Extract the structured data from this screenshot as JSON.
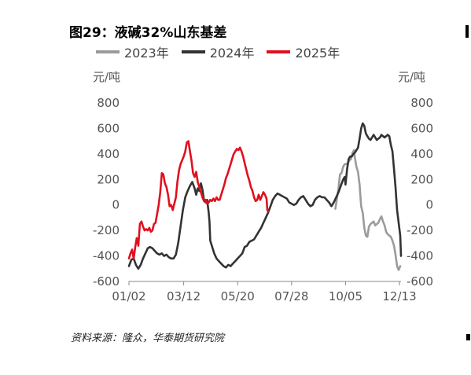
{
  "title": "图29：液碱32%山东基差",
  "source": "资料来源：隆众，华泰期货研究院",
  "colors": {
    "y2023": "#9b9b9b",
    "y2024": "#333333",
    "y2025": "#e0101e",
    "axis": "#555555"
  },
  "chart_data": {
    "type": "line",
    "title": "图29：液碱32%山东基差",
    "left_unit": "元/吨",
    "right_unit": "元/吨",
    "ylim": [
      -600,
      800
    ],
    "yticks": [
      "800",
      "600",
      "400",
      "200",
      "0",
      "-200",
      "-400",
      "-600"
    ],
    "xlim": [
      0,
      348
    ],
    "xticks": [
      {
        "day": 0,
        "label": "01/02"
      },
      {
        "day": 70,
        "label": "03/12"
      },
      {
        "day": 139,
        "label": "05/20"
      },
      {
        "day": 208,
        "label": "07/28"
      },
      {
        "day": 277,
        "label": "10/05"
      },
      {
        "day": 346,
        "label": "12/13"
      }
    ],
    "grid": false,
    "legend_position": "top",
    "series": [
      {
        "name": "2023年",
        "color": "#9b9b9b",
        "points": [
          [
            264,
            -30
          ],
          [
            266,
            50
          ],
          [
            268,
            130
          ],
          [
            270,
            240
          ],
          [
            272,
            250
          ],
          [
            274,
            300
          ],
          [
            276,
            320
          ],
          [
            278,
            320
          ],
          [
            280,
            330
          ],
          [
            282,
            350
          ],
          [
            284,
            360
          ],
          [
            286,
            410
          ],
          [
            288,
            430
          ],
          [
            289,
            370
          ],
          [
            291,
            300
          ],
          [
            293,
            260
          ],
          [
            295,
            160
          ],
          [
            297,
            -10
          ],
          [
            299,
            -60
          ],
          [
            301,
            -180
          ],
          [
            303,
            -240
          ],
          [
            305,
            -250
          ],
          [
            307,
            -170
          ],
          [
            309,
            -150
          ],
          [
            311,
            -140
          ],
          [
            313,
            -130
          ],
          [
            315,
            -160
          ],
          [
            317,
            -150
          ],
          [
            319,
            -140
          ],
          [
            321,
            -110
          ],
          [
            323,
            -90
          ],
          [
            325,
            -130
          ],
          [
            327,
            -160
          ],
          [
            329,
            -210
          ],
          [
            331,
            -230
          ],
          [
            333,
            -240
          ],
          [
            335,
            -250
          ],
          [
            337,
            -280
          ],
          [
            339,
            -320
          ],
          [
            341,
            -390
          ],
          [
            343,
            -480
          ],
          [
            345,
            -510
          ],
          [
            347,
            -480
          ]
        ]
      },
      {
        "name": "2024年",
        "color": "#333333",
        "points": [
          [
            0,
            -480
          ],
          [
            3,
            -430
          ],
          [
            6,
            -420
          ],
          [
            9,
            -470
          ],
          [
            12,
            -500
          ],
          [
            15,
            -470
          ],
          [
            18,
            -420
          ],
          [
            21,
            -380
          ],
          [
            24,
            -340
          ],
          [
            27,
            -330
          ],
          [
            30,
            -340
          ],
          [
            33,
            -360
          ],
          [
            36,
            -380
          ],
          [
            39,
            -390
          ],
          [
            42,
            -380
          ],
          [
            45,
            -400
          ],
          [
            48,
            -390
          ],
          [
            51,
            -410
          ],
          [
            54,
            -420
          ],
          [
            57,
            -420
          ],
          [
            60,
            -390
          ],
          [
            63,
            -300
          ],
          [
            66,
            -170
          ],
          [
            69,
            -40
          ],
          [
            72,
            60
          ],
          [
            75,
            110
          ],
          [
            78,
            150
          ],
          [
            81,
            180
          ],
          [
            84,
            130
          ],
          [
            86,
            80
          ],
          [
            88,
            130
          ],
          [
            90,
            110
          ],
          [
            92,
            170
          ],
          [
            94,
            120
          ],
          [
            96,
            40
          ],
          [
            98,
            20
          ],
          [
            100,
            40
          ],
          [
            102,
            -60
          ],
          [
            103,
            -130
          ],
          [
            104,
            -280
          ],
          [
            106,
            -320
          ],
          [
            109,
            -380
          ],
          [
            112,
            -420
          ],
          [
            115,
            -440
          ],
          [
            118,
            -460
          ],
          [
            121,
            -480
          ],
          [
            124,
            -490
          ],
          [
            127,
            -470
          ],
          [
            130,
            -480
          ],
          [
            133,
            -460
          ],
          [
            136,
            -440
          ],
          [
            139,
            -420
          ],
          [
            142,
            -400
          ],
          [
            145,
            -380
          ],
          [
            148,
            -330
          ],
          [
            151,
            -320
          ],
          [
            154,
            -290
          ],
          [
            157,
            -280
          ],
          [
            160,
            -270
          ],
          [
            163,
            -240
          ],
          [
            166,
            -210
          ],
          [
            169,
            -180
          ],
          [
            172,
            -140
          ],
          [
            175,
            -100
          ],
          [
            178,
            -60
          ],
          [
            181,
            -10
          ],
          [
            184,
            40
          ],
          [
            187,
            70
          ],
          [
            190,
            90
          ],
          [
            193,
            80
          ],
          [
            196,
            70
          ],
          [
            199,
            60
          ],
          [
            202,
            50
          ],
          [
            205,
            20
          ],
          [
            208,
            10
          ],
          [
            211,
            0
          ],
          [
            214,
            10
          ],
          [
            217,
            40
          ],
          [
            220,
            60
          ],
          [
            223,
            70
          ],
          [
            226,
            40
          ],
          [
            229,
            10
          ],
          [
            232,
            -10
          ],
          [
            235,
            0
          ],
          [
            238,
            40
          ],
          [
            241,
            60
          ],
          [
            244,
            70
          ],
          [
            247,
            60
          ],
          [
            250,
            60
          ],
          [
            253,
            40
          ],
          [
            256,
            20
          ],
          [
            259,
            -10
          ],
          [
            262,
            20
          ],
          [
            265,
            60
          ],
          [
            268,
            100
          ],
          [
            271,
            150
          ],
          [
            274,
            200
          ],
          [
            276,
            220
          ],
          [
            277,
            160
          ],
          [
            279,
            280
          ],
          [
            281,
            360
          ],
          [
            283,
            380
          ],
          [
            285,
            380
          ],
          [
            287,
            400
          ],
          [
            289,
            410
          ],
          [
            291,
            430
          ],
          [
            293,
            450
          ],
          [
            295,
            520
          ],
          [
            297,
            600
          ],
          [
            299,
            640
          ],
          [
            301,
            620
          ],
          [
            303,
            560
          ],
          [
            305,
            540
          ],
          [
            307,
            520
          ],
          [
            309,
            510
          ],
          [
            311,
            530
          ],
          [
            313,
            550
          ],
          [
            315,
            530
          ],
          [
            317,
            510
          ],
          [
            319,
            520
          ],
          [
            321,
            530
          ],
          [
            323,
            550
          ],
          [
            325,
            540
          ],
          [
            327,
            530
          ],
          [
            329,
            540
          ],
          [
            331,
            550
          ],
          [
            333,
            540
          ],
          [
            335,
            470
          ],
          [
            337,
            420
          ],
          [
            339,
            280
          ],
          [
            341,
            140
          ],
          [
            343,
            -40
          ],
          [
            345,
            -140
          ],
          [
            347,
            -240
          ],
          [
            348,
            -400
          ]
        ]
      },
      {
        "name": "2025年",
        "color": "#e0101e",
        "points": [
          [
            0,
            -420
          ],
          [
            2,
            -380
          ],
          [
            4,
            -350
          ],
          [
            6,
            -420
          ],
          [
            8,
            -330
          ],
          [
            10,
            -260
          ],
          [
            12,
            -320
          ],
          [
            14,
            -150
          ],
          [
            16,
            -130
          ],
          [
            18,
            -170
          ],
          [
            20,
            -200
          ],
          [
            22,
            -190
          ],
          [
            24,
            -200
          ],
          [
            26,
            -180
          ],
          [
            28,
            -210
          ],
          [
            30,
            -200
          ],
          [
            32,
            -150
          ],
          [
            34,
            -140
          ],
          [
            36,
            -70
          ],
          [
            38,
            0
          ],
          [
            40,
            100
          ],
          [
            42,
            250
          ],
          [
            44,
            240
          ],
          [
            46,
            170
          ],
          [
            48,
            140
          ],
          [
            50,
            80
          ],
          [
            52,
            -10
          ],
          [
            54,
            0
          ],
          [
            56,
            -40
          ],
          [
            58,
            10
          ],
          [
            60,
            60
          ],
          [
            62,
            180
          ],
          [
            64,
            270
          ],
          [
            66,
            320
          ],
          [
            68,
            350
          ],
          [
            70,
            380
          ],
          [
            72,
            420
          ],
          [
            74,
            490
          ],
          [
            76,
            500
          ],
          [
            78,
            420
          ],
          [
            80,
            350
          ],
          [
            82,
            250
          ],
          [
            84,
            220
          ],
          [
            86,
            260
          ],
          [
            88,
            180
          ],
          [
            90,
            140
          ],
          [
            92,
            100
          ],
          [
            94,
            60
          ],
          [
            96,
            30
          ],
          [
            98,
            40
          ],
          [
            100,
            10
          ],
          [
            102,
            20
          ],
          [
            104,
            40
          ],
          [
            106,
            30
          ],
          [
            108,
            50
          ],
          [
            110,
            30
          ],
          [
            112,
            60
          ],
          [
            114,
            40
          ],
          [
            116,
            40
          ],
          [
            118,
            80
          ],
          [
            120,
            120
          ],
          [
            122,
            160
          ],
          [
            124,
            210
          ],
          [
            126,
            240
          ],
          [
            128,
            280
          ],
          [
            130,
            320
          ],
          [
            132,
            360
          ],
          [
            134,
            400
          ],
          [
            136,
            420
          ],
          [
            138,
            440
          ],
          [
            140,
            430
          ],
          [
            142,
            450
          ],
          [
            144,
            420
          ],
          [
            146,
            380
          ],
          [
            148,
            330
          ],
          [
            150,
            280
          ],
          [
            152,
            230
          ],
          [
            154,
            190
          ],
          [
            156,
            140
          ],
          [
            158,
            110
          ],
          [
            160,
            60
          ],
          [
            162,
            30
          ],
          [
            164,
            40
          ],
          [
            166,
            80
          ],
          [
            168,
            40
          ],
          [
            170,
            70
          ],
          [
            172,
            100
          ],
          [
            174,
            80
          ],
          [
            176,
            50
          ],
          [
            177,
            -40
          ],
          [
            178,
            -50
          ]
        ]
      }
    ]
  }
}
